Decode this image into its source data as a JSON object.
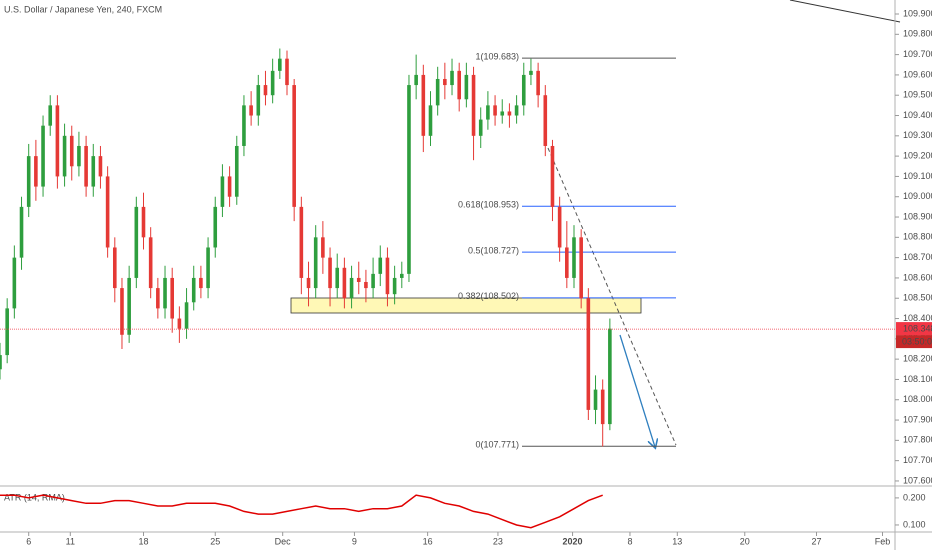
{
  "chart_data": {
    "type": "candlestick",
    "title": "U.S. Dollar / Japanese Yen, 240, FXCM",
    "up_color": "#2e9e3e",
    "down_color": "#e53935",
    "x": [
      0,
      0.5,
      1,
      1.5,
      2,
      2.5,
      3,
      3.5,
      4,
      4.5,
      5,
      5.5,
      6,
      6.5,
      7,
      7.5,
      8,
      8.5,
      9,
      9.5,
      10,
      10.5,
      11,
      11.5,
      12,
      12.5,
      13,
      13.5,
      14,
      14.5,
      15,
      15.5,
      16,
      16.5,
      17,
      17.5,
      18,
      18.5,
      19,
      19.5,
      20,
      20.5,
      21,
      21.5,
      22,
      22.5,
      23,
      23.5,
      24,
      24.5,
      25,
      25.5,
      26,
      26.5,
      27,
      27.5,
      28,
      28.5,
      29,
      29.5,
      30,
      30.5,
      31,
      31.5,
      32,
      32.5,
      33,
      33.5,
      34,
      34.5,
      35,
      35.5,
      36,
      36.5,
      37,
      37.5,
      38,
      38.5,
      39,
      39.5,
      40,
      40.5,
      41,
      41.5,
      42,
      42.5
    ],
    "open": [
      108.15,
      108.22,
      108.45,
      108.7,
      108.95,
      109.2,
      109.05,
      109.35,
      109.45,
      109.1,
      109.3,
      109.15,
      109.25,
      109.05,
      109.2,
      109.1,
      108.75,
      108.55,
      108.32,
      108.6,
      108.95,
      108.8,
      108.55,
      108.45,
      108.6,
      108.4,
      108.35,
      108.48,
      108.6,
      108.55,
      108.75,
      108.95,
      109.1,
      109.0,
      109.25,
      109.45,
      109.4,
      109.55,
      109.5,
      109.62,
      109.68,
      109.55,
      108.95,
      108.6,
      108.55,
      108.8,
      108.7,
      108.55,
      108.65,
      108.5,
      108.6,
      108.58,
      108.55,
      108.62,
      108.7,
      108.52,
      108.6,
      108.62,
      109.55,
      109.6,
      109.3,
      109.45,
      109.58,
      109.55,
      109.62,
      109.48,
      109.6,
      109.3,
      109.38,
      109.45,
      109.4,
      109.42,
      109.4,
      109.45,
      109.6,
      109.62,
      109.5,
      109.25,
      108.95,
      108.75,
      108.6,
      108.8,
      108.5,
      107.95,
      108.05,
      107.88
    ],
    "high": [
      108.28,
      108.5,
      108.76,
      109.0,
      109.26,
      109.28,
      109.4,
      109.5,
      109.5,
      109.36,
      109.35,
      109.32,
      109.3,
      109.26,
      109.25,
      109.15,
      108.8,
      108.6,
      108.66,
      109.0,
      109.02,
      108.85,
      108.6,
      108.66,
      108.65,
      108.46,
      108.55,
      108.66,
      108.66,
      108.8,
      109.0,
      109.16,
      109.15,
      109.3,
      109.5,
      109.52,
      109.6,
      109.62,
      109.68,
      109.73,
      109.72,
      109.58,
      109.0,
      108.68,
      108.86,
      108.88,
      108.75,
      108.72,
      108.7,
      108.66,
      108.68,
      108.64,
      108.7,
      108.76,
      108.75,
      108.66,
      108.68,
      109.6,
      109.7,
      109.65,
      109.52,
      109.64,
      109.66,
      109.68,
      109.66,
      109.66,
      109.64,
      109.44,
      109.52,
      109.5,
      109.48,
      109.46,
      109.5,
      109.66,
      109.68,
      109.66,
      109.55,
      109.28,
      109.0,
      108.88,
      108.86,
      108.84,
      108.55,
      108.12,
      108.1,
      108.4
    ],
    "low": [
      108.1,
      108.18,
      108.4,
      108.64,
      108.9,
      108.98,
      109.0,
      109.3,
      109.04,
      109.05,
      109.08,
      109.1,
      109.0,
      109.0,
      109.04,
      108.7,
      108.48,
      108.25,
      108.28,
      108.55,
      108.74,
      108.5,
      108.4,
      108.4,
      108.33,
      108.28,
      108.3,
      108.44,
      108.5,
      108.5,
      108.7,
      108.9,
      108.95,
      108.96,
      109.2,
      109.35,
      109.35,
      109.45,
      109.46,
      109.58,
      109.5,
      108.88,
      108.52,
      108.46,
      108.5,
      108.62,
      108.46,
      108.5,
      108.45,
      108.45,
      108.52,
      108.48,
      108.5,
      108.56,
      108.46,
      108.47,
      108.55,
      108.58,
      109.48,
      109.22,
      109.25,
      109.4,
      109.48,
      109.5,
      109.42,
      109.44,
      109.18,
      109.24,
      109.33,
      109.35,
      109.36,
      109.34,
      109.36,
      109.4,
      109.55,
      109.44,
      109.2,
      108.88,
      108.68,
      108.55,
      108.55,
      108.45,
      107.9,
      107.88,
      107.77,
      107.85
    ],
    "close": [
      108.22,
      108.45,
      108.7,
      108.95,
      109.2,
      109.05,
      109.35,
      109.45,
      109.1,
      109.3,
      109.15,
      109.25,
      109.05,
      109.2,
      109.1,
      108.75,
      108.55,
      108.32,
      108.6,
      108.95,
      108.8,
      108.55,
      108.45,
      108.6,
      108.4,
      108.35,
      108.48,
      108.6,
      108.55,
      108.75,
      108.95,
      109.1,
      109.0,
      109.25,
      109.45,
      109.4,
      109.55,
      109.5,
      109.62,
      109.68,
      109.55,
      108.95,
      108.6,
      108.55,
      108.8,
      108.7,
      108.55,
      108.65,
      108.5,
      108.6,
      108.58,
      108.55,
      108.62,
      108.7,
      108.52,
      108.6,
      108.62,
      109.55,
      109.6,
      109.3,
      109.45,
      109.58,
      109.55,
      109.62,
      109.48,
      109.6,
      109.3,
      109.38,
      109.45,
      109.4,
      109.42,
      109.4,
      109.45,
      109.6,
      109.62,
      109.5,
      109.25,
      108.95,
      108.75,
      108.6,
      108.8,
      108.5,
      107.95,
      108.05,
      107.88,
      108.35
    ],
    "xlim": [
      0,
      62.37
    ],
    "xticks": [
      {
        "value": 2,
        "label": "6"
      },
      {
        "value": 4.9,
        "label": "11"
      },
      {
        "value": 10,
        "label": "18"
      },
      {
        "value": 15,
        "label": "25"
      },
      {
        "value": 19.7,
        "label": "Dec"
      },
      {
        "value": 24.7,
        "label": "9"
      },
      {
        "value": 29.8,
        "label": "16"
      },
      {
        "value": 34.7,
        "label": "23"
      },
      {
        "value": 39.9,
        "label": "2020"
      },
      {
        "value": 43.9,
        "label": "8"
      },
      {
        "value": 47.2,
        "label": "13"
      },
      {
        "value": 51.9,
        "label": "20"
      },
      {
        "value": 56.9,
        "label": "27"
      },
      {
        "value": 61.5,
        "label": "Feb"
      }
    ],
    "ylim": [
      107.585,
      109.969
    ],
    "yticks": [
      {
        "value": 107.6,
        "label": "107.600"
      },
      {
        "value": 107.7,
        "label": "107.700"
      },
      {
        "value": 107.8,
        "label": "107.800"
      },
      {
        "value": 107.9,
        "label": "107.900"
      },
      {
        "value": 108.0,
        "label": "108.000"
      },
      {
        "value": 108.1,
        "label": "108.100"
      },
      {
        "value": 108.2,
        "label": "108.200"
      },
      {
        "value": 108.3,
        "label": "108.300"
      },
      {
        "value": 108.4,
        "label": "108.400"
      },
      {
        "value": 108.5,
        "label": "108.500"
      },
      {
        "value": 108.6,
        "label": "108.600"
      },
      {
        "value": 108.7,
        "label": "108.700"
      },
      {
        "value": 108.8,
        "label": "108.800"
      },
      {
        "value": 108.9,
        "label": "108.900"
      },
      {
        "value": 109.0,
        "label": "109.000"
      },
      {
        "value": 109.1,
        "label": "109.100"
      },
      {
        "value": 109.2,
        "label": "109.200"
      },
      {
        "value": 109.3,
        "label": "109.300"
      },
      {
        "value": 109.4,
        "label": "109.400"
      },
      {
        "value": 109.5,
        "label": "109.500"
      },
      {
        "value": 109.6,
        "label": "109.600"
      },
      {
        "value": 109.7,
        "label": "109.700"
      },
      {
        "value": 109.8,
        "label": "109.800"
      },
      {
        "value": 109.9,
        "label": "109.900"
      }
    ],
    "last_price": 108.348,
    "price_color": "#f23645",
    "countdown": "03:50:07",
    "fib": {
      "levels": [
        {
          "label": "1(109.683)",
          "value": 109.683,
          "color": "#555555"
        },
        {
          "label": "0.618(108.953)",
          "value": 108.953,
          "color": "#2962ff"
        },
        {
          "label": "0.5(108.727)",
          "value": 108.727,
          "color": "#2962ff"
        },
        {
          "label": "0.382(108.502)",
          "value": 108.502,
          "color": "#2962ff"
        },
        {
          "label": "0(107.771)",
          "value": 107.771,
          "color": "#555555"
        }
      ]
    },
    "indicator": {
      "type": "line",
      "name": "ATR (14, RMA)",
      "color": "#e00000",
      "x": [
        0,
        1,
        2,
        3,
        4,
        5,
        6,
        7,
        8,
        9,
        10,
        11,
        12,
        13,
        14,
        15,
        16,
        17,
        18,
        19,
        20,
        21,
        22,
        23,
        24,
        25,
        26,
        27,
        28,
        29,
        30,
        31,
        32,
        33,
        34,
        35,
        36,
        37,
        38,
        39,
        40,
        41,
        42
      ],
      "values": [
        0.21,
        0.21,
        0.2,
        0.21,
        0.2,
        0.19,
        0.18,
        0.18,
        0.19,
        0.19,
        0.18,
        0.17,
        0.17,
        0.18,
        0.18,
        0.18,
        0.17,
        0.15,
        0.14,
        0.14,
        0.15,
        0.16,
        0.17,
        0.16,
        0.16,
        0.15,
        0.16,
        0.16,
        0.17,
        0.21,
        0.2,
        0.18,
        0.17,
        0.15,
        0.14,
        0.12,
        0.1,
        0.09,
        0.11,
        0.13,
        0.16,
        0.19,
        0.21
      ],
      "ylim": [
        0.074,
        0.244
      ],
      "yticks": [
        {
          "value": 0.1,
          "label": "0.100"
        },
        {
          "value": 0.2,
          "label": "0.200"
        }
      ]
    }
  }
}
